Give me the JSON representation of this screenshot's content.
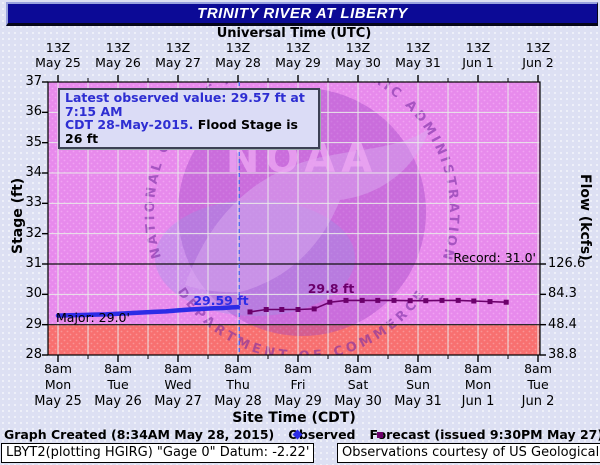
{
  "title": "TRINITY RIVER AT LIBERTY",
  "top_axis": {
    "label": "Universal Time (UTC)",
    "tick_time": "13Z",
    "dates": [
      "May 25",
      "May 26",
      "May 27",
      "May 28",
      "May 29",
      "May 30",
      "May 31",
      "Jun 1",
      "Jun 2"
    ]
  },
  "bottom_axis": {
    "label": "Site Time (CDT)",
    "tick_time": "8am",
    "days": [
      "Mon",
      "Tue",
      "Wed",
      "Thu",
      "Fri",
      "Sat",
      "Sun",
      "Mon",
      "Tue"
    ],
    "dates": [
      "May 25",
      "May 26",
      "May 27",
      "May 28",
      "May 29",
      "May 30",
      "May 31",
      "Jun 1",
      "Jun 2"
    ]
  },
  "left_axis": {
    "label": "Stage (ft)",
    "ticks": [
      "37",
      "36",
      "35",
      "34",
      "33",
      "32",
      "31",
      "30",
      "29",
      "28"
    ]
  },
  "right_axis": {
    "label": "Flow (kcfs)",
    "ticks": [
      {
        "stage": 31,
        "flow": "126.6"
      },
      {
        "stage": 30,
        "flow": "84.3"
      },
      {
        "stage": 29,
        "flow": "48.4"
      },
      {
        "stage": 28,
        "flow": "38.8"
      }
    ]
  },
  "info_box": {
    "line1": "Latest observed value: 29.57 ft at 7:15 AM",
    "line2_blue": "CDT 28-May-2015.",
    "line2_black": " Flood Stage is 26 ft"
  },
  "annotations": {
    "record": "Record: 31.0'",
    "major": "Major: 29.0'",
    "observed_peak": "29.59 ft",
    "forecast_peak": "29.8 ft"
  },
  "legend": {
    "created": "Graph Created (8:34AM May 28, 2015)",
    "observed": "Observed",
    "forecast": "Forecast (issued 9:30PM May 27)"
  },
  "footer": {
    "left": "LBYT2(plotting HGIRG) \"Gage 0\" Datum: -2.22'",
    "right": "Observations courtesy of US Geological Survey"
  },
  "watermark": {
    "noaa": "NOAA",
    "ring_top": "NATIONAL OCEANIC AND ATMOSPHERIC ADMINISTRATION",
    "ring_bottom": "DEPARTMENT OF COMMERCE"
  },
  "colors": {
    "title_bg": "#0c0a96",
    "plot_bg": "#e78aec",
    "flood_zone": "#f87070",
    "observed": "#2c2ce6",
    "forecast": "#6b006b",
    "created_line": "#4a5cf2",
    "gridline": "#e9e9e9",
    "watermark_purple": "#9b3ec2",
    "info_text_blue": "#2e2ed2"
  },
  "chart_data": {
    "type": "line",
    "title": "TRINITY RIVER AT LIBERTY",
    "xlabel_top": "Universal Time (UTC)",
    "xlabel_bottom": "Site Time (CDT)",
    "ylabel_left": "Stage (ft)",
    "ylabel_right": "Flow (kcfs)",
    "ylim": [
      28,
      37
    ],
    "x_unit": "days since May 25 8am CDT (13Z); one major tick per day",
    "x_tick_days": [
      "May 25",
      "May 26",
      "May 27",
      "May 28",
      "May 29",
      "May 30",
      "May 31",
      "Jun 1",
      "Jun 2"
    ],
    "flood_levels": {
      "major_stage_ft": 29.0,
      "record_stage_ft": 31.0,
      "flood_stage_ft": 26
    },
    "flow_stage_pairs": [
      {
        "stage_ft": 31,
        "flow_kcfs": 126.6
      },
      {
        "stage_ft": 30,
        "flow_kcfs": 84.3
      },
      {
        "stage_ft": 29,
        "flow_kcfs": 48.4
      },
      {
        "stage_ft": 28,
        "flow_kcfs": 38.8
      }
    ],
    "latest_observed": {
      "stage_ft": 29.57,
      "time": "7:15 AM CDT 28-May-2015"
    },
    "graph_created": {
      "label": "8:34AM May 28, 2015",
      "d": 3.02
    },
    "series": [
      {
        "name": "Observed",
        "color": "#2c2ce6",
        "marker": "none",
        "d": [
          0,
          0.2,
          0.4,
          0.6,
          0.8,
          1.0,
          1.2,
          1.4,
          1.6,
          1.8,
          2.0,
          2.2,
          2.4,
          2.6,
          2.75,
          2.9,
          3.0
        ],
        "stage": [
          29.3,
          29.31,
          29.32,
          29.33,
          29.34,
          29.36,
          29.38,
          29.4,
          29.42,
          29.44,
          29.47,
          29.5,
          29.52,
          29.54,
          29.55,
          29.57,
          29.58
        ]
      },
      {
        "name": "Forecast (issued 9:30PM May 27)",
        "color": "#6b006b",
        "marker": "square",
        "d": [
          3.2,
          3.47,
          3.73,
          4.0,
          4.27,
          4.53,
          4.8,
          5.07,
          5.33,
          5.6,
          5.87,
          6.13,
          6.4,
          6.67,
          6.93,
          7.2,
          7.47
        ],
        "stage": [
          29.42,
          29.5,
          29.5,
          29.5,
          29.52,
          29.74,
          29.8,
          29.8,
          29.8,
          29.8,
          29.79,
          29.79,
          29.8,
          29.8,
          29.78,
          29.76,
          29.74
        ]
      }
    ],
    "annotations": [
      "Record: 31.0'",
      "Major: 29.0'",
      "29.59 ft",
      "29.8 ft"
    ],
    "legend_position": "bottom",
    "grid": true
  }
}
